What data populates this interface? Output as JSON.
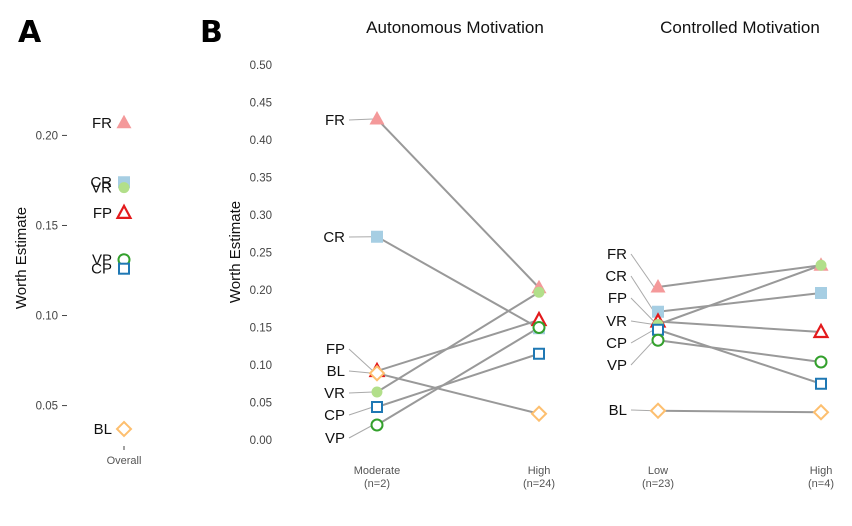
{
  "figure": {
    "label_a": "A",
    "label_b": "B"
  },
  "colors": {
    "FR": "#f4999a",
    "CR": "#a6cee3",
    "VR": "#b2df8a",
    "FP": "#e31a1c",
    "VP": "#33a02c",
    "CP": "#1f78b4",
    "BL": "#fdbf6f",
    "line": "#999999",
    "leader": "#aaaaaa"
  },
  "markers": {
    "FR": "filled-triangle",
    "CR": "filled-square",
    "VR": "filled-circle",
    "FP": "open-triangle",
    "VP": "open-circle",
    "CP": "open-square",
    "BL": "open-diamond"
  },
  "chart_data": [
    {
      "panel": "A",
      "type": "scatter",
      "ylabel": "Worth Estimate",
      "categories": [
        "Overall"
      ],
      "y_ticks": [
        "0.05",
        "0.10",
        "0.15",
        "0.20"
      ],
      "ylim": [
        0.032,
        0.218
      ],
      "points": [
        {
          "name": "FR",
          "value": 0.207
        },
        {
          "name": "CR",
          "value": 0.174
        },
        {
          "name": "VR",
          "value": 0.171
        },
        {
          "name": "FP",
          "value": 0.157
        },
        {
          "name": "VP",
          "value": 0.131
        },
        {
          "name": "CP",
          "value": 0.126
        },
        {
          "name": "BL",
          "value": 0.037
        }
      ]
    },
    {
      "panel": "B",
      "type": "line",
      "title": "Autonomous Motivation",
      "ylabel": "Worth Estimate",
      "categories": [
        "Moderate\n(n=2)",
        "High\n(n=24)"
      ],
      "y_ticks": [
        "0.00",
        "0.05",
        "0.10",
        "0.15",
        "0.20",
        "0.25",
        "0.30",
        "0.35",
        "0.40",
        "0.45",
        "0.50"
      ],
      "ylim": [
        0,
        0.5
      ],
      "series": [
        {
          "name": "FR",
          "values": [
            0.428,
            0.203
          ]
        },
        {
          "name": "CR",
          "values": [
            0.271,
            0.149
          ]
        },
        {
          "name": "FP",
          "values": [
            0.092,
            0.16
          ]
        },
        {
          "name": "BL",
          "values": [
            0.089,
            0.035
          ]
        },
        {
          "name": "VR",
          "values": [
            0.064,
            0.197
          ]
        },
        {
          "name": "CP",
          "values": [
            0.044,
            0.115
          ]
        },
        {
          "name": "VP",
          "values": [
            0.02,
            0.15
          ]
        }
      ]
    },
    {
      "panel": "B",
      "type": "line",
      "title": "Controlled Motivation",
      "categories": [
        "Low\n(n=23)",
        "High\n(n=4)"
      ],
      "ylim": [
        0,
        0.5
      ],
      "series": [
        {
          "name": "FR",
          "values": [
            0.204,
            0.233
          ]
        },
        {
          "name": "CR",
          "values": [
            0.171,
            0.196
          ]
        },
        {
          "name": "FP",
          "values": [
            0.158,
            0.144
          ]
        },
        {
          "name": "VR",
          "values": [
            0.154,
            0.233
          ]
        },
        {
          "name": "CP",
          "values": [
            0.147,
            0.075
          ]
        },
        {
          "name": "VP",
          "values": [
            0.133,
            0.104
          ]
        },
        {
          "name": "BL",
          "values": [
            0.039,
            0.037
          ]
        }
      ]
    }
  ]
}
